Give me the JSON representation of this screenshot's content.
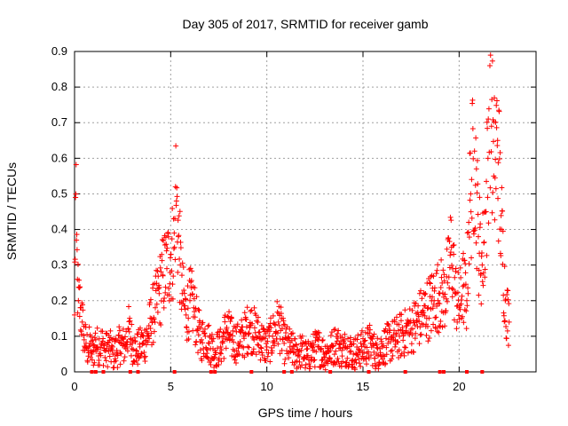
{
  "chart_data": {
    "type": "scatter",
    "title": "Day 305 of 2017, SRMTID for receiver gamb",
    "xlabel": "GPS time / hours",
    "ylabel": "SRMTID / TECUs",
    "xlim": [
      0,
      24
    ],
    "ylim": [
      0,
      0.9
    ],
    "xticks": [
      0,
      5,
      10,
      15,
      20
    ],
    "yticks": [
      0,
      0.1,
      0.2,
      0.3,
      0.4,
      0.5,
      0.6,
      0.7,
      0.8,
      0.9
    ],
    "grid": true,
    "marker": "+",
    "color": "#ff0000",
    "series": [
      {
        "name": "SRMTID",
        "x": [
          0.0,
          0.05,
          0.1,
          0.15,
          0.2,
          0.3,
          0.4,
          0.5,
          0.6,
          0.7,
          0.8,
          0.9,
          1.0,
          1.1,
          1.2,
          1.4,
          1.6,
          1.8,
          2.0,
          2.2,
          2.4,
          2.6,
          2.8,
          3.0,
          3.2,
          3.4,
          3.6,
          3.8,
          4.0,
          4.2,
          4.4,
          4.6,
          4.8,
          5.0,
          5.2,
          5.25,
          5.3,
          5.4,
          5.5,
          5.6,
          5.8,
          6.0,
          6.2,
          6.4,
          6.6,
          6.8,
          7.0,
          7.3,
          7.6,
          7.9,
          8.2,
          8.5,
          8.8,
          9.1,
          9.4,
          9.7,
          10.0,
          10.3,
          10.6,
          10.9,
          11.2,
          11.5,
          11.8,
          12.1,
          12.4,
          12.7,
          13.0,
          13.3,
          13.6,
          13.9,
          14.2,
          14.5,
          14.8,
          15.1,
          15.4,
          15.7,
          16.0,
          16.3,
          16.6,
          16.9,
          17.2,
          17.5,
          17.8,
          18.1,
          18.4,
          18.7,
          19.0,
          19.2,
          19.4,
          19.6,
          19.8,
          20.0,
          20.2,
          20.4,
          20.5,
          20.6,
          20.8,
          21.0,
          21.2,
          21.4,
          21.5,
          21.6,
          21.8,
          22.0,
          22.2,
          22.4,
          22.6
        ],
        "values": [
          0.16,
          0.49,
          0.37,
          0.26,
          0.2,
          0.18,
          0.14,
          0.09,
          0.08,
          0.06,
          0.08,
          0.05,
          0.06,
          0.09,
          0.07,
          0.08,
          0.06,
          0.07,
          0.05,
          0.06,
          0.08,
          0.07,
          0.12,
          0.08,
          0.06,
          0.07,
          0.08,
          0.1,
          0.15,
          0.18,
          0.22,
          0.27,
          0.29,
          0.33,
          0.35,
          0.52,
          0.48,
          0.38,
          0.3,
          0.22,
          0.16,
          0.2,
          0.18,
          0.12,
          0.09,
          0.1,
          0.08,
          0.06,
          0.07,
          0.12,
          0.09,
          0.08,
          0.1,
          0.13,
          0.11,
          0.09,
          0.07,
          0.1,
          0.14,
          0.08,
          0.07,
          0.05,
          0.06,
          0.04,
          0.06,
          0.07,
          0.05,
          0.06,
          0.08,
          0.06,
          0.07,
          0.05,
          0.06,
          0.07,
          0.08,
          0.05,
          0.07,
          0.08,
          0.09,
          0.1,
          0.11,
          0.12,
          0.14,
          0.16,
          0.18,
          0.2,
          0.22,
          0.21,
          0.25,
          0.35,
          0.22,
          0.18,
          0.24,
          0.2,
          0.42,
          0.5,
          0.62,
          0.38,
          0.3,
          0.45,
          0.6,
          0.86,
          0.55,
          0.65,
          0.4,
          0.2,
          0.14
        ]
      }
    ],
    "zero_markers_x": [
      0.9,
      1.1,
      1.5,
      2.9,
      3.3,
      5.2,
      7.1,
      7.3,
      9.2,
      10.9,
      11.3,
      13.3,
      15.3,
      17.2,
      19.0,
      19.2,
      20.4,
      21.2
    ]
  }
}
